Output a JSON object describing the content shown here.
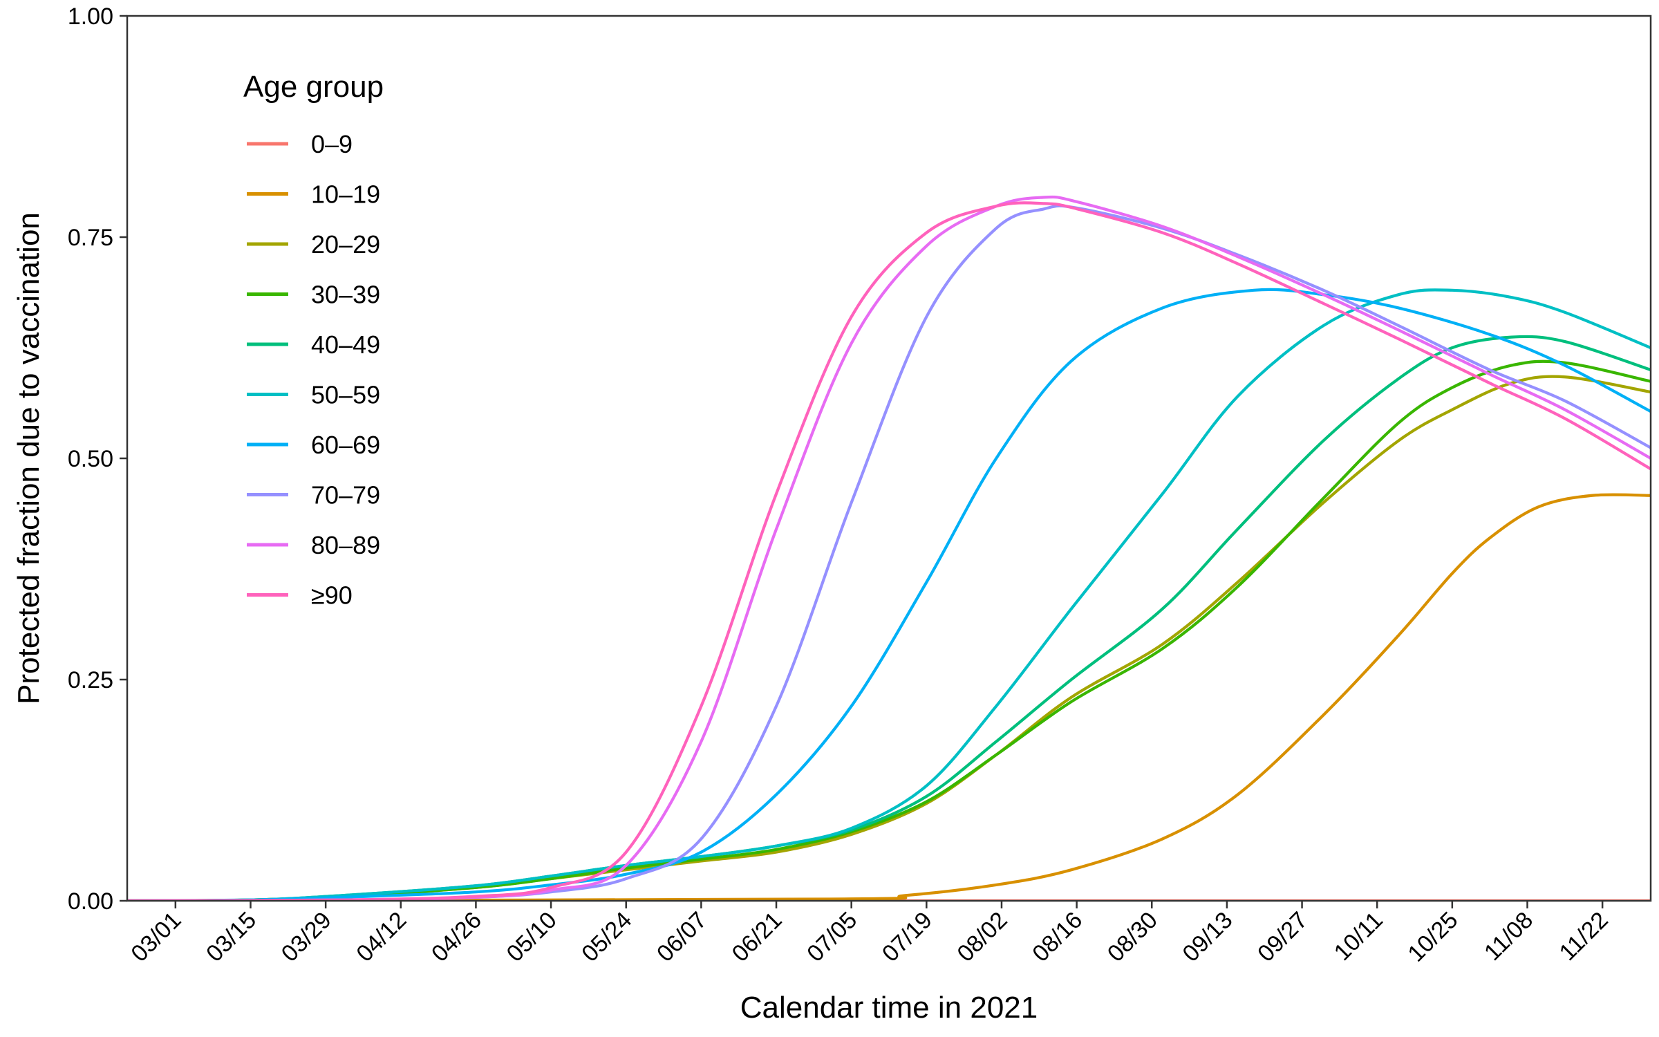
{
  "chart_data": {
    "type": "line",
    "title": "",
    "xlabel": "Calendar time in 2021",
    "ylabel": "Protected fraction due to vaccination",
    "x_tick_labels": [
      "03/01",
      "03/15",
      "03/29",
      "04/12",
      "04/26",
      "05/10",
      "05/24",
      "06/07",
      "06/21",
      "07/05",
      "07/19",
      "08/02",
      "08/16",
      "08/30",
      "09/13",
      "09/27",
      "10/11",
      "10/25",
      "11/08",
      "11/22"
    ],
    "x_tick_dates": [
      "2021-03-01",
      "2021-03-15",
      "2021-03-29",
      "2021-04-12",
      "2021-04-26",
      "2021-05-10",
      "2021-05-24",
      "2021-06-07",
      "2021-06-21",
      "2021-07-05",
      "2021-07-19",
      "2021-08-02",
      "2021-08-16",
      "2021-08-30",
      "2021-09-13",
      "2021-09-27",
      "2021-10-11",
      "2021-10-25",
      "2021-11-08",
      "2021-11-22"
    ],
    "xlim": [
      "2021-02-20",
      "2021-12-01"
    ],
    "y_ticks": [
      0,
      0.25,
      0.5,
      0.75,
      1
    ],
    "y_tick_labels": [
      "0.00",
      "0.25",
      "0.50",
      "0.75",
      "1.00"
    ],
    "ylim": [
      0,
      1
    ],
    "grid": false,
    "legend": {
      "title": "Age group",
      "placement": "top-left inside"
    },
    "series": [
      {
        "name": "0–9",
        "color": "#F8766D",
        "x": [
          "2021-02-20",
          "2021-12-01"
        ],
        "y": [
          0,
          0
        ]
      },
      {
        "name": "10–19",
        "color": "#D89000",
        "x": [
          "2021-02-20",
          "2021-07-01",
          "2021-07-15",
          "2021-08-01",
          "2021-08-15",
          "2021-09-01",
          "2021-09-15",
          "2021-10-01",
          "2021-10-15",
          "2021-10-25",
          "2021-11-01",
          "2021-11-10",
          "2021-11-20",
          "2021-12-01"
        ],
        "y": [
          0,
          0.002,
          0.006,
          0.018,
          0.035,
          0.07,
          0.12,
          0.21,
          0.3,
          0.37,
          0.41,
          0.445,
          0.458,
          0.458
        ]
      },
      {
        "name": "20–29",
        "color": "#A3A500",
        "x": [
          "2021-02-20",
          "2021-03-15",
          "2021-04-01",
          "2021-04-26",
          "2021-05-10",
          "2021-05-24",
          "2021-06-07",
          "2021-06-21",
          "2021-07-05",
          "2021-07-19",
          "2021-08-01",
          "2021-08-15",
          "2021-09-01",
          "2021-09-15",
          "2021-10-01",
          "2021-10-15",
          "2021-10-25",
          "2021-11-05",
          "2021-11-15",
          "2021-12-01"
        ],
        "y": [
          0,
          0.001,
          0.005,
          0.015,
          0.025,
          0.035,
          0.045,
          0.055,
          0.075,
          0.11,
          0.165,
          0.23,
          0.29,
          0.36,
          0.45,
          0.52,
          0.555,
          0.585,
          0.592,
          0.575
        ]
      },
      {
        "name": "30–39",
        "color": "#39B600",
        "x": [
          "2021-02-20",
          "2021-03-15",
          "2021-04-01",
          "2021-04-26",
          "2021-05-10",
          "2021-05-24",
          "2021-06-07",
          "2021-06-21",
          "2021-07-05",
          "2021-07-19",
          "2021-08-01",
          "2021-08-15",
          "2021-09-01",
          "2021-09-15",
          "2021-10-01",
          "2021-10-15",
          "2021-10-25",
          "2021-11-05",
          "2021-11-15",
          "2021-12-01"
        ],
        "y": [
          0,
          0.001,
          0.005,
          0.015,
          0.025,
          0.037,
          0.047,
          0.058,
          0.078,
          0.112,
          0.165,
          0.225,
          0.285,
          0.355,
          0.455,
          0.54,
          0.58,
          0.605,
          0.608,
          0.587
        ]
      },
      {
        "name": "40–49",
        "color": "#00BF7D",
        "x": [
          "2021-02-20",
          "2021-03-15",
          "2021-04-01",
          "2021-04-26",
          "2021-05-10",
          "2021-05-24",
          "2021-06-07",
          "2021-06-21",
          "2021-07-05",
          "2021-07-19",
          "2021-08-01",
          "2021-08-15",
          "2021-09-01",
          "2021-09-15",
          "2021-10-01",
          "2021-10-15",
          "2021-10-25",
          "2021-11-05",
          "2021-11-15",
          "2021-12-01"
        ],
        "y": [
          0,
          0.001,
          0.006,
          0.017,
          0.028,
          0.04,
          0.05,
          0.062,
          0.08,
          0.118,
          0.18,
          0.25,
          0.33,
          0.42,
          0.52,
          0.59,
          0.625,
          0.637,
          0.632,
          0.6
        ]
      },
      {
        "name": "50–59",
        "color": "#00BFC4",
        "x": [
          "2021-02-20",
          "2021-03-15",
          "2021-04-01",
          "2021-04-26",
          "2021-05-10",
          "2021-05-24",
          "2021-06-07",
          "2021-06-21",
          "2021-07-05",
          "2021-07-19",
          "2021-08-01",
          "2021-08-15",
          "2021-09-01",
          "2021-09-15",
          "2021-10-01",
          "2021-10-15",
          "2021-10-25",
          "2021-11-05",
          "2021-11-15",
          "2021-12-01"
        ],
        "y": [
          0,
          0.001,
          0.006,
          0.017,
          0.028,
          0.04,
          0.05,
          0.062,
          0.082,
          0.13,
          0.22,
          0.33,
          0.46,
          0.57,
          0.65,
          0.685,
          0.69,
          0.682,
          0.665,
          0.625
        ]
      },
      {
        "name": "60–69",
        "color": "#00B0F6",
        "x": [
          "2021-02-20",
          "2021-03-15",
          "2021-04-01",
          "2021-04-26",
          "2021-05-10",
          "2021-05-24",
          "2021-06-07",
          "2021-06-21",
          "2021-07-05",
          "2021-07-19",
          "2021-08-01",
          "2021-08-15",
          "2021-09-01",
          "2021-09-18",
          "2021-10-01",
          "2021-10-15",
          "2021-11-01",
          "2021-11-15",
          "2021-12-01"
        ],
        "y": [
          0,
          0.001,
          0.004,
          0.01,
          0.018,
          0.03,
          0.055,
          0.12,
          0.22,
          0.36,
          0.5,
          0.61,
          0.67,
          0.69,
          0.685,
          0.67,
          0.64,
          0.605,
          0.553
        ]
      },
      {
        "name": "70–79",
        "color": "#9590FF",
        "x": [
          "2021-02-20",
          "2021-04-01",
          "2021-04-26",
          "2021-05-10",
          "2021-05-24",
          "2021-06-07",
          "2021-06-21",
          "2021-07-05",
          "2021-07-19",
          "2021-08-01",
          "2021-08-10",
          "2021-08-16",
          "2021-09-01",
          "2021-09-15",
          "2021-10-01",
          "2021-10-15",
          "2021-11-01",
          "2021-11-15",
          "2021-12-01"
        ],
        "y": [
          0,
          0.001,
          0.004,
          0.01,
          0.025,
          0.07,
          0.22,
          0.45,
          0.66,
          0.76,
          0.782,
          0.783,
          0.76,
          0.73,
          0.69,
          0.65,
          0.6,
          0.565,
          0.512
        ]
      },
      {
        "name": "80–89",
        "color": "#E76BF3",
        "x": [
          "2021-02-20",
          "2021-04-01",
          "2021-04-26",
          "2021-05-10",
          "2021-05-24",
          "2021-06-07",
          "2021-06-21",
          "2021-07-05",
          "2021-07-19",
          "2021-08-01",
          "2021-08-10",
          "2021-08-16",
          "2021-09-01",
          "2021-09-15",
          "2021-10-01",
          "2021-10-15",
          "2021-11-01",
          "2021-11-15",
          "2021-12-01"
        ],
        "y": [
          0,
          0.001,
          0.004,
          0.012,
          0.04,
          0.18,
          0.42,
          0.63,
          0.74,
          0.785,
          0.795,
          0.79,
          0.762,
          0.728,
          0.685,
          0.645,
          0.595,
          0.555,
          0.5
        ]
      },
      {
        "name": "≥90",
        "color": "#FF62BC",
        "x": [
          "2021-02-20",
          "2021-04-01",
          "2021-04-26",
          "2021-05-10",
          "2021-05-24",
          "2021-06-07",
          "2021-06-21",
          "2021-07-05",
          "2021-07-19",
          "2021-08-01",
          "2021-08-10",
          "2021-08-16",
          "2021-09-01",
          "2021-09-15",
          "2021-10-01",
          "2021-10-15",
          "2021-11-01",
          "2021-11-15",
          "2021-12-01"
        ],
        "y": [
          0,
          0.001,
          0.005,
          0.015,
          0.055,
          0.22,
          0.46,
          0.66,
          0.755,
          0.785,
          0.788,
          0.782,
          0.755,
          0.72,
          0.675,
          0.635,
          0.585,
          0.545,
          0.488
        ]
      }
    ]
  }
}
